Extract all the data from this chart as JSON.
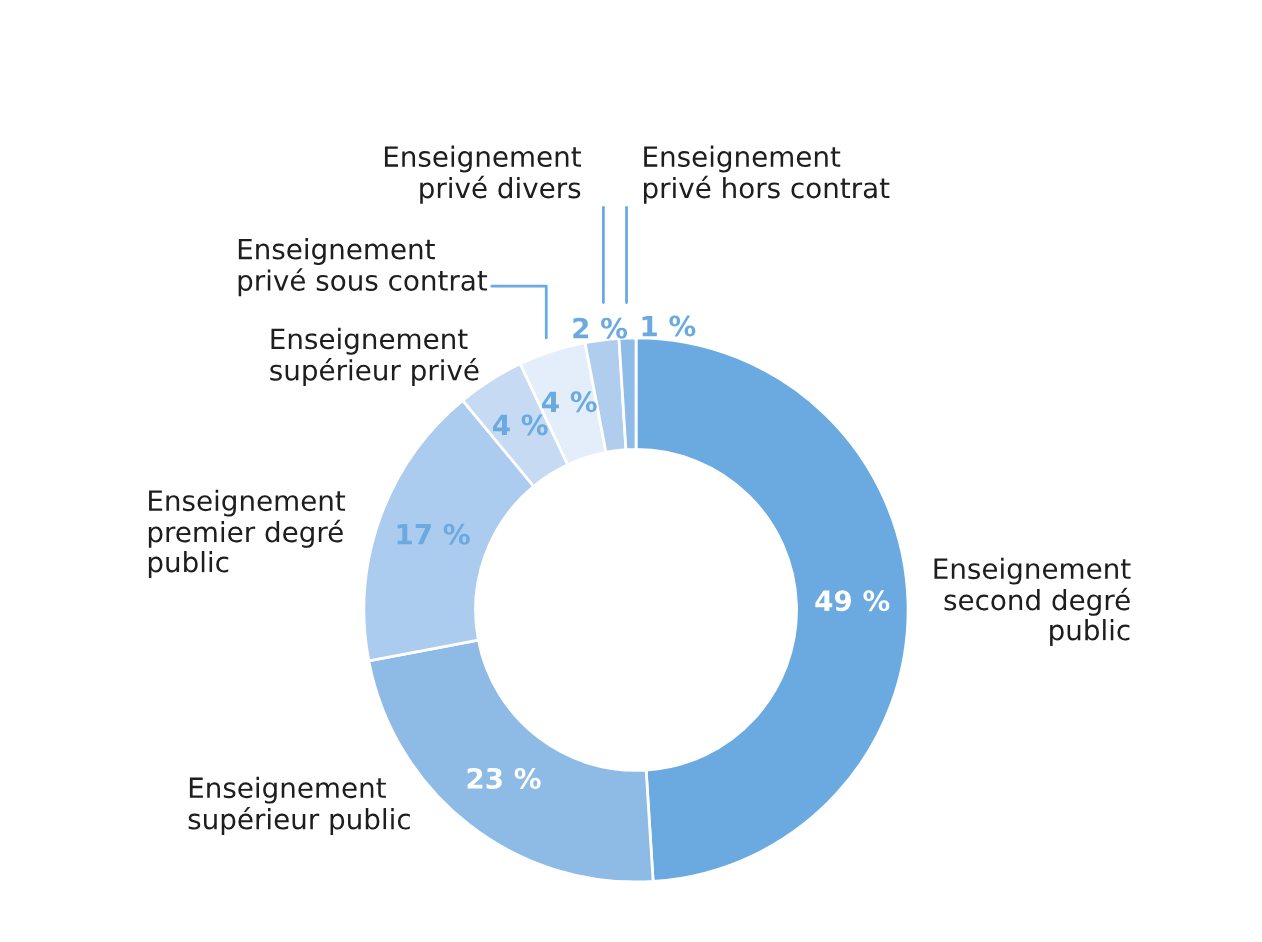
{
  "chart_data": {
    "type": "donut",
    "categories": [
      "Enseignement\nsecond degré\npublic",
      "Enseignement\nsupérieur public",
      "Enseignement\npremier degré\npublic",
      "Enseignement\nsupérieur privé",
      "Enseignement\nprivé sous contrat",
      "Enseignement\nprivé divers",
      "Enseignement\nprivé hors contrat"
    ],
    "values": [
      49,
      23,
      17,
      4,
      4,
      2,
      1
    ],
    "value_labels": [
      "49 %",
      "23 %",
      "17 %",
      "4 %",
      "4 %",
      "2 %",
      "1 %"
    ],
    "colors": [
      "#6aaae0",
      "#8dbbe6",
      "#abcbef",
      "#c6daf3",
      "#e4edfa",
      "#b0cdee",
      "#8fbbe8"
    ],
    "legend": false
  }
}
